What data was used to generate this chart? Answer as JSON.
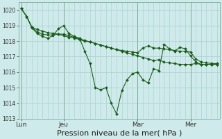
{
  "bg_color": "#ceeaea",
  "grid_color": "#aacccc",
  "line_color": "#1a5c1a",
  "marker_color": "#1a5c1a",
  "xlabel": "Pression niveau de la mer( hPa )",
  "xlabel_fontsize": 8,
  "ylim": [
    1013.0,
    1020.5
  ],
  "yticks": [
    1013,
    1014,
    1015,
    1016,
    1017,
    1018,
    1019,
    1020
  ],
  "xtick_labels": [
    "Lun",
    "Jeu",
    "Mar",
    "Mer"
  ],
  "xtick_positions": [
    0,
    8,
    22,
    32
  ],
  "total_points": 38,
  "series1": [
    1020.1,
    1019.6,
    1018.9,
    1018.75,
    1018.65,
    1018.55,
    1018.5,
    1018.45,
    1018.35,
    1018.25,
    1018.2,
    1018.1,
    1018.0,
    1017.95,
    1017.85,
    1017.75,
    1017.65,
    1017.55,
    1017.45,
    1017.4,
    1017.35,
    1017.3,
    1017.25,
    1017.55,
    1017.7,
    1017.55,
    1017.55,
    1017.5,
    1017.45,
    1017.4,
    1017.35,
    1017.35,
    1017.3,
    1016.85,
    1016.65,
    1016.6,
    1016.55,
    1016.55
  ],
  "series2": [
    1020.1,
    1019.6,
    1018.9,
    1018.6,
    1018.45,
    1018.4,
    1018.4,
    1018.45,
    1018.45,
    1018.35,
    1018.25,
    1018.15,
    1018.05,
    1017.95,
    1017.85,
    1017.75,
    1017.65,
    1017.55,
    1017.45,
    1017.35,
    1017.25,
    1017.15,
    1017.05,
    1016.95,
    1016.85,
    1016.75,
    1016.8,
    1016.65,
    1016.6,
    1016.55,
    1016.5,
    1016.5,
    1016.5,
    1016.55,
    1016.5,
    1016.5,
    1016.5,
    1016.5
  ],
  "series3": [
    1020.1,
    1019.6,
    1018.85,
    1018.5,
    1018.3,
    1018.2,
    1018.35,
    1018.8,
    1019.0,
    1018.5,
    1018.3,
    1018.2,
    1017.35,
    1016.55,
    1015.0,
    1014.85,
    1015.0,
    1014.0,
    1013.3,
    1014.8,
    1015.5,
    1015.9,
    1016.0,
    1015.5,
    1015.3,
    1016.2,
    1016.1,
    1017.8,
    1017.5,
    1017.35,
    1017.6,
    1017.5,
    1017.05,
    1016.65,
    1016.5,
    1016.5,
    1016.5,
    1016.5
  ],
  "xlim": [
    -0.5,
    37.5
  ]
}
